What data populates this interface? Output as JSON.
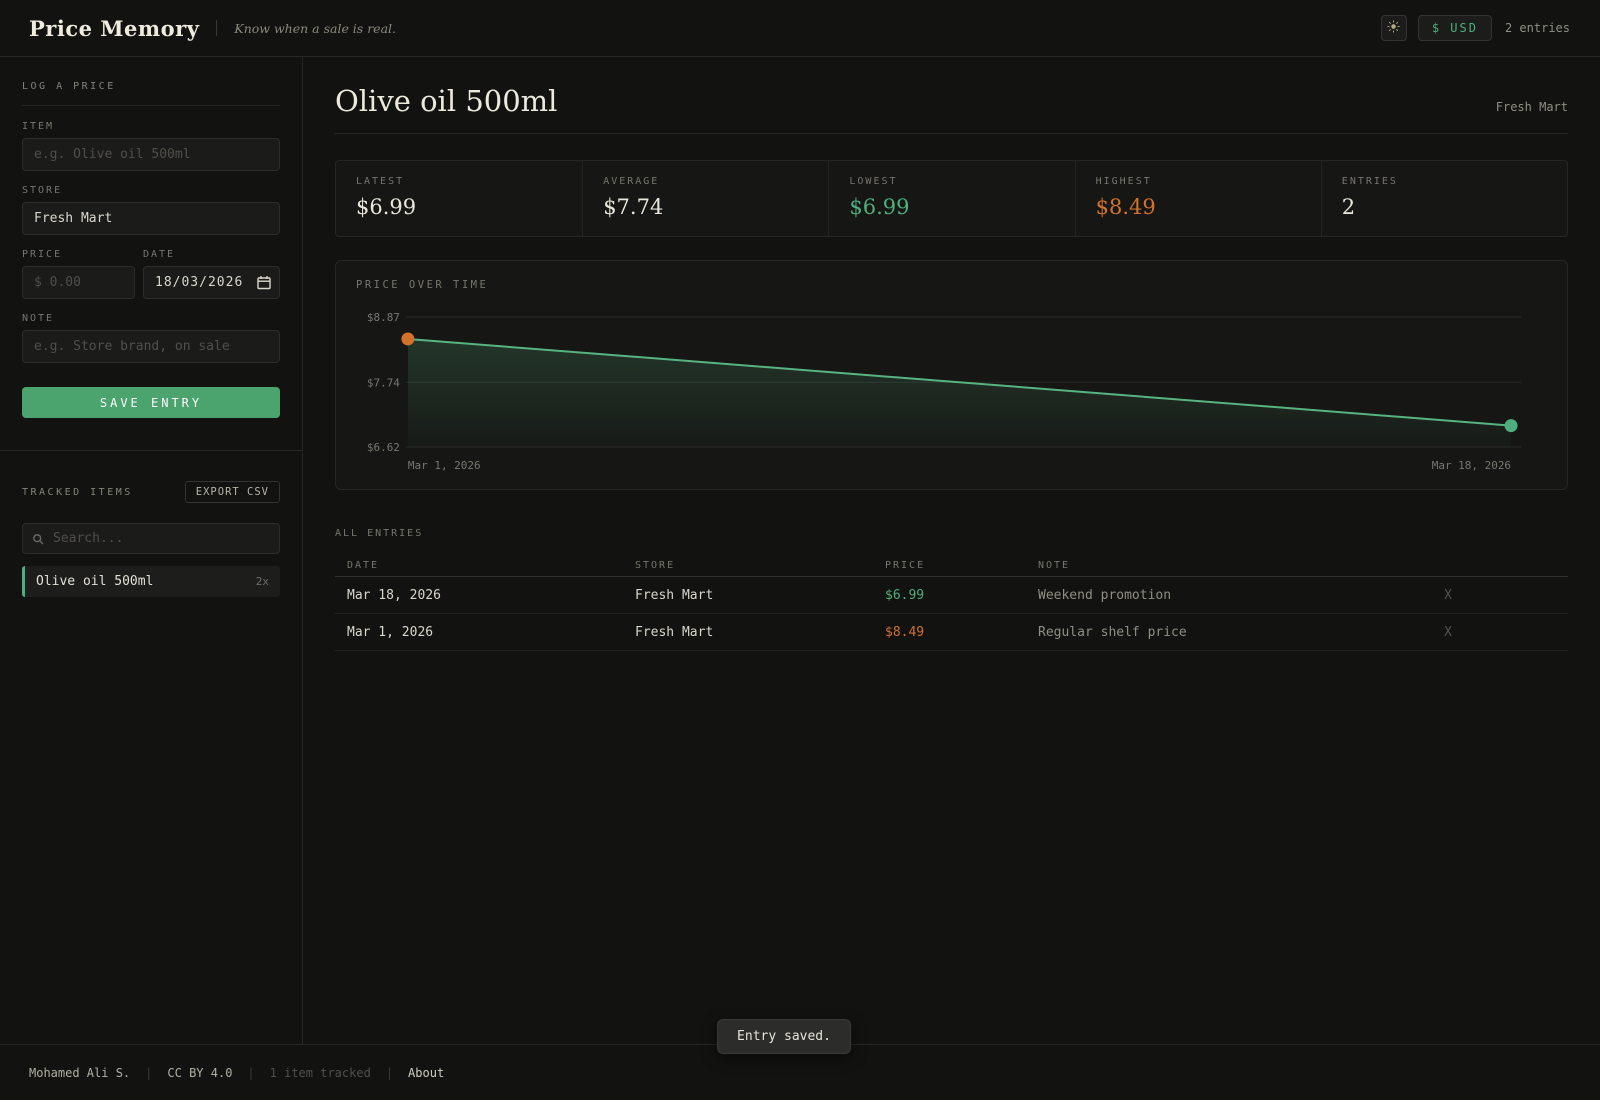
{
  "header": {
    "app_title": "Price Memory",
    "tagline": "Know when a sale is real.",
    "currency_label": "$ USD",
    "entries_count": "2 entries"
  },
  "log_form": {
    "section_title": "LOG A PRICE",
    "item_label": "ITEM",
    "item_placeholder": "e.g. Olive oil 500ml",
    "store_label": "STORE",
    "store_value": "Fresh Mart",
    "price_label": "PRICE",
    "price_placeholder": "$ 0.00",
    "date_label": "DATE",
    "date_value": "18/03/2026",
    "note_label": "NOTE",
    "note_placeholder": "e.g. Store brand, on sale",
    "save_label": "SAVE ENTRY"
  },
  "tracked": {
    "section_title": "TRACKED ITEMS",
    "export_label": "EXPORT CSV",
    "search_placeholder": "Search...",
    "items": [
      {
        "name": "Olive oil 500ml",
        "count": "2x"
      }
    ]
  },
  "main": {
    "title": "Olive oil 500ml",
    "store": "Fresh Mart",
    "stats": [
      {
        "label": "LATEST",
        "value": "$6.99",
        "color": "#e9e7dc"
      },
      {
        "label": "AVERAGE",
        "value": "$7.74",
        "color": "#e9e7dc"
      },
      {
        "label": "LOWEST",
        "value": "$6.99",
        "color": "#4fae7d"
      },
      {
        "label": "HIGHEST",
        "value": "$8.49",
        "color": "#d3722a"
      },
      {
        "label": "ENTRIES",
        "value": "2",
        "color": "#e9e7dc"
      }
    ],
    "entries_section_title": "ALL ENTRIES",
    "table": {
      "headers": [
        "DATE",
        "STORE",
        "PRICE",
        "NOTE"
      ],
      "delete_label": "X",
      "rows": [
        {
          "date": "Mar 18, 2026",
          "store": "Fresh Mart",
          "price": "$6.99",
          "price_color": "#4fae7d",
          "note": "Weekend promotion"
        },
        {
          "date": "Mar 1, 2026",
          "store": "Fresh Mart",
          "price": "$8.49",
          "price_color": "#d3722a",
          "note": "Regular shelf price"
        }
      ]
    }
  },
  "chart_data": {
    "type": "line",
    "title": "PRICE OVER TIME",
    "x": [
      "Mar 1, 2026",
      "Mar 18, 2026"
    ],
    "values": [
      8.49,
      6.99
    ],
    "ylim": [
      6.62,
      8.87
    ],
    "y_tick_values": [
      8.87,
      7.74,
      6.62
    ],
    "y_ticks": [
      "$8.87",
      "$7.74",
      "$6.62"
    ],
    "x_labels": [
      "Mar 1, 2026",
      "Mar 18, 2026"
    ],
    "line_color": "#57b481",
    "point_colors": [
      "#d3722a",
      "#4fae7d"
    ],
    "grid": true,
    "legend": false
  },
  "footer": {
    "author": "Mohamed Ali S.",
    "license": "CC BY 4.0",
    "tracked_summary": "1 item tracked",
    "about_label": "About",
    "separator": "|"
  },
  "toast": {
    "message": "Entry saved."
  }
}
